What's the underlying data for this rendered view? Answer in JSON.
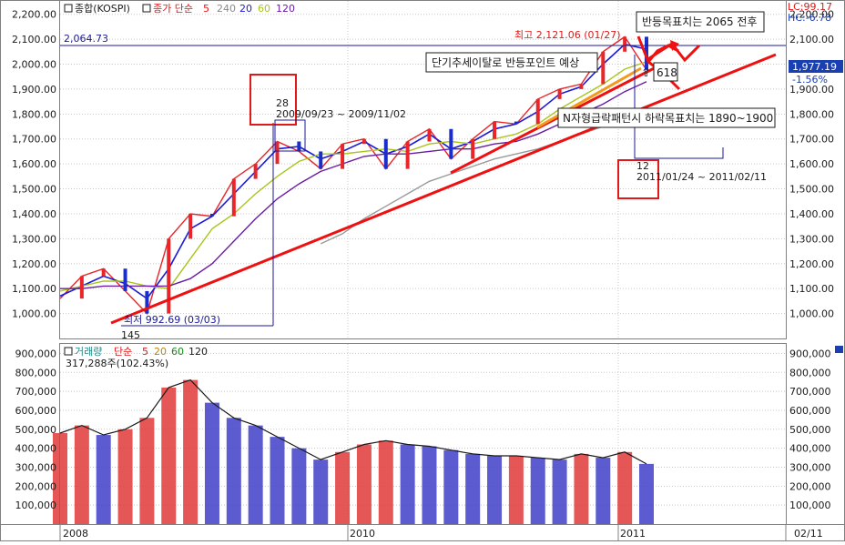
{
  "colors": {
    "frame": "#7f7f7f",
    "grid": "#c8c8c8",
    "price_up": "#e8262a",
    "price_down": "#1b2ec9",
    "ma5": "#ef1b1b",
    "ma20": "#1b1bd8",
    "ma60": "#a9c51b",
    "ma120": "#6a1ba3",
    "ma240": "#9a9a9a",
    "trend": "#ee1111",
    "annotation": "#1a1a99",
    "current_label_bg": "#1a3fb0",
    "box_red": "#e01818",
    "vol_up": "#e03a3a",
    "vol_down": "#4040c8",
    "vol_ma20": "#2c8a2c",
    "vol_ma60": "#1b8a1b",
    "vol_ma120": "#1a1a1a"
  },
  "price_panel": {
    "checkbox_icon": "checkbox-icon",
    "index_name": "종합(KOSPI)",
    "ma_label": "종가 단순",
    "ma_periods": [
      "5",
      "240",
      "20",
      "60",
      "120"
    ],
    "lc_label": "LC:99.17",
    "hc_label": "HC:-6.78",
    "current_value": "1,977.19",
    "change_percent": "-1.56%",
    "reference_line_label": "2,064.73",
    "y_ticks": [
      "2,200.00",
      "2,100.00",
      "2,000.00",
      "1,900.00",
      "1,800.00",
      "1,700.00",
      "1,600.00",
      "1,500.00",
      "1,400.00",
      "1,300.00",
      "1,200.00",
      "1,100.00",
      "1,000.00"
    ],
    "low_label": "최저 992.69 (03/03)",
    "low_count": "145",
    "high_label": "최고 2,121.06 (01/27)",
    "box1_count": "28",
    "box1_range": "2009/09/23 ~ 2009/11/02",
    "box2_count": "12",
    "box2_range": "2011/01/24 ~ 2011/02/11",
    "annot_target": "반등목표치는 2065 전후",
    "annot_rebound": "단기추세이탈로 반등포인트 예상",
    "annot_n_pattern": "N자형급락패턴시 하락목표치는 1890~1900",
    "annot_618": "618"
  },
  "volume_panel": {
    "checkbox_icon": "checkbox-icon",
    "title": "거래량",
    "ma_label": "단순",
    "ma_periods": [
      "5",
      "20",
      "60",
      "120"
    ],
    "current_value": "317,288주(102.43%)",
    "y_ticks": [
      "900,000",
      "800,000",
      "700,000",
      "600,000",
      "500,000",
      "400,000",
      "300,000",
      "200,000",
      "100,000"
    ]
  },
  "x_axis": {
    "labels": [
      "2008",
      "2010",
      "2011",
      "02/11"
    ]
  },
  "chart_data": [
    {
      "type": "line",
      "title": "종합(KOSPI)",
      "x": [
        "2008-11",
        "2008-12",
        "2009-01",
        "2009-02",
        "2009-03",
        "2009-04",
        "2009-05",
        "2009-06",
        "2009-07",
        "2009-08",
        "2009-09",
        "2009-10",
        "2009-11",
        "2009-12",
        "2010-01",
        "2010-02",
        "2010-03",
        "2010-04",
        "2010-05",
        "2010-06",
        "2010-07",
        "2010-08",
        "2010-09",
        "2010-10",
        "2010-11",
        "2010-12",
        "2011-01",
        "2011-02"
      ],
      "series": [
        {
          "name": "종가",
          "values": [
            1060,
            1150,
            1180,
            1090,
            1000,
            1300,
            1400,
            1390,
            1540,
            1600,
            1690,
            1650,
            1580,
            1680,
            1700,
            1580,
            1690,
            1740,
            1620,
            1700,
            1770,
            1760,
            1860,
            1900,
            1920,
            2050,
            2110,
            1977
          ]
        },
        {
          "name": "20",
          "values": [
            1070,
            1110,
            1150,
            1120,
            1060,
            1180,
            1340,
            1390,
            1480,
            1570,
            1660,
            1670,
            1620,
            1650,
            1690,
            1640,
            1670,
            1720,
            1660,
            1690,
            1740,
            1760,
            1810,
            1880,
            1910,
            2000,
            2080,
            2060
          ]
        },
        {
          "name": "60",
          "values": [
            1090,
            1110,
            1130,
            1130,
            1110,
            1100,
            1220,
            1340,
            1400,
            1480,
            1550,
            1610,
            1640,
            1640,
            1650,
            1660,
            1650,
            1680,
            1690,
            1680,
            1700,
            1720,
            1760,
            1820,
            1870,
            1920,
            1980,
            2010
          ]
        },
        {
          "name": "120",
          "values": [
            1100,
            1100,
            1110,
            1110,
            1110,
            1110,
            1140,
            1200,
            1290,
            1380,
            1460,
            1520,
            1570,
            1600,
            1630,
            1640,
            1640,
            1650,
            1660,
            1660,
            1680,
            1690,
            1720,
            1760,
            1800,
            1840,
            1890,
            1930
          ]
        },
        {
          "name": "240",
          "values": [
            null,
            null,
            null,
            null,
            null,
            null,
            null,
            null,
            null,
            null,
            null,
            null,
            1280,
            1320,
            1380,
            1430,
            1480,
            1530,
            1560,
            1590,
            1620,
            1640,
            1660,
            1690,
            1720,
            1750,
            1790,
            1820
          ]
        }
      ],
      "annotations": {
        "high": 2121.06,
        "low": 992.69,
        "reference": 2064.73
      },
      "ylim": [
        900,
        2250
      ]
    },
    {
      "type": "bar",
      "title": "거래량",
      "x": [
        "2008-11",
        "2008-12",
        "2009-01",
        "2009-02",
        "2009-03",
        "2009-04",
        "2009-05",
        "2009-06",
        "2009-07",
        "2009-08",
        "2009-09",
        "2009-10",
        "2009-11",
        "2009-12",
        "2010-01",
        "2010-02",
        "2010-03",
        "2010-04",
        "2010-05",
        "2010-06",
        "2010-07",
        "2010-08",
        "2010-09",
        "2010-10",
        "2010-11",
        "2010-12",
        "2011-01",
        "2011-02"
      ],
      "series": [
        {
          "name": "거래량",
          "values": [
            480000,
            520000,
            470000,
            500000,
            560000,
            720000,
            760000,
            640000,
            560000,
            520000,
            460000,
            400000,
            340000,
            380000,
            420000,
            440000,
            420000,
            410000,
            390000,
            370000,
            360000,
            360000,
            350000,
            340000,
            370000,
            350000,
            380000,
            317288
          ]
        }
      ],
      "ylim": [
        0,
        950000
      ]
    }
  ]
}
